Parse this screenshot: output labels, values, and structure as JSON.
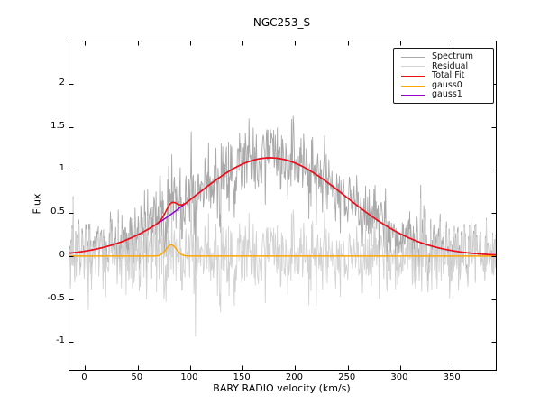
{
  "figure": {
    "title": "NGC253_S",
    "xlabel": "BARY RADIO velocity (km/s)",
    "ylabel": "Flux"
  },
  "chart_data": {
    "type": "line",
    "title": "NGC253_S",
    "xlabel": "BARY RADIO velocity (km/s)",
    "ylabel": "Flux",
    "xlim": [
      -15,
      391
    ],
    "ylim": [
      -1.32,
      2.49
    ],
    "xticks": [
      0,
      50,
      100,
      150,
      200,
      250,
      300,
      350
    ],
    "yticks": [
      2,
      1.5,
      1,
      0.5,
      0,
      -0.5,
      -1
    ],
    "grid": false,
    "frame_color": "#000000",
    "background": "#ffffff",
    "tick_style": {
      "direction": "in",
      "length": 4.5,
      "sides": "all"
    },
    "legend": {
      "position": "upper right"
    },
    "x_sampling": {
      "start": -15,
      "end": 391,
      "step": 0.5,
      "units": "km/s"
    },
    "noise": {
      "sigma": 0.22,
      "seed": 7,
      "outliers": [
        {
          "x": 101,
          "value": 0.78
        },
        {
          "x": 105,
          "value": -0.93
        }
      ]
    },
    "series": [
      {
        "name": "Spectrum",
        "color": "#a9a9a9",
        "line_width": 0.9,
        "role": "data",
        "derivation": "total_fit + noise"
      },
      {
        "name": "Residual",
        "color": "#d3d3d3",
        "line_width": 0.9,
        "role": "residual",
        "derivation": "spectrum - total_fit"
      },
      {
        "name": "Total Fit",
        "color": "#ee1111",
        "line_width": 1.6,
        "role": "fit",
        "derivation": "gauss0 + gauss1",
        "peak": {
          "x": 176,
          "y": 1.14
        }
      },
      {
        "name": "gauss0",
        "color": "#ffa500",
        "line_width": 1.5,
        "role": "component",
        "model": {
          "type": "gaussian",
          "amplitude": 0.13,
          "center": 82,
          "sigma": 5
        }
      },
      {
        "name": "gauss1",
        "color": "#9400d3",
        "line_width": 1.5,
        "role": "component",
        "model": {
          "type": "gaussian",
          "amplitude": 1.14,
          "center": 176,
          "sigma": 72
        }
      }
    ]
  }
}
